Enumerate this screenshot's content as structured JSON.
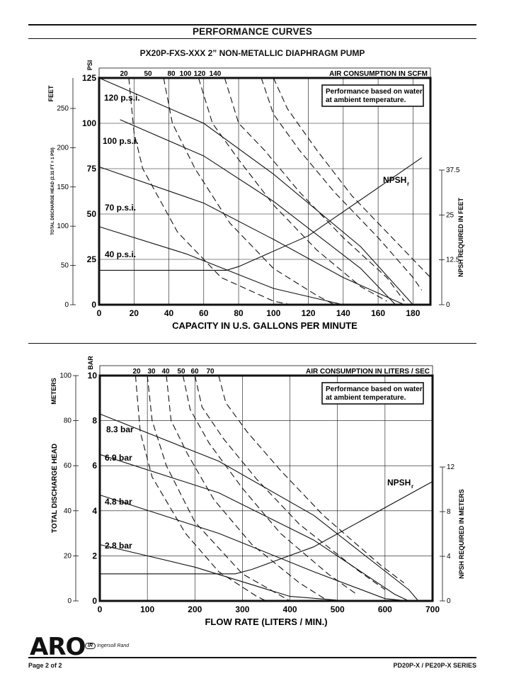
{
  "page": {
    "heading": "PERFORMANCE CURVES",
    "footer_left": "Page  2 of 2",
    "footer_right": "PD20P-X / PE20P-X SERIES",
    "logo_text": "ARO",
    "partner_badge": "IR",
    "partner_text": "Ingersoll Rand",
    "colors": {
      "ink": "#111111",
      "background": "#ffffff"
    }
  },
  "chart_data": [
    {
      "type": "line",
      "title": "PX20P-FXS-XXX   2” NON-METALLIC DIAPHRAGM PUMP",
      "xlabel": "CAPACITY IN U.S. GALLONS PER MINUTE",
      "xlim": [
        0,
        190
      ],
      "x_ticks": [
        "0",
        "20",
        "40",
        "60",
        "80",
        "100",
        "120",
        "140",
        "160",
        "180"
      ],
      "ylim": [
        0,
        125
      ],
      "left_axis": {
        "label": "FEET",
        "label_long": "TOTAL DISCHARGE HEAD (2.31 FT = 1 PSI)",
        "ticks": [
          "250",
          "200",
          "150",
          "100",
          "50",
          "0"
        ]
      },
      "pressure_axis": {
        "label": "PSI",
        "ticks": [
          "125",
          "100",
          "75",
          "50",
          "25",
          "0"
        ]
      },
      "right_axis": {
        "label": "NPSH REQUIRED IN FEET",
        "ticks": [
          "37.5",
          "25",
          "12.5",
          "0"
        ]
      },
      "top_axis": {
        "label": "AIR CONSUMPTION IN SCFM",
        "ticks": [
          "20",
          "50",
          "80",
          "100",
          "120",
          "140"
        ]
      },
      "note_lines": [
        "Performance based on water",
        "at ambient temperature."
      ],
      "npsh_label": "NPSH",
      "npsh_sub": "r",
      "grid": true,
      "series": [
        {
          "name": "120 p.s.i.",
          "style": "solid",
          "points": [
            [
              0,
              130
            ],
            [
              60,
              100
            ],
            [
              100,
              72
            ],
            [
              150,
              32
            ],
            [
              180,
              0
            ]
          ]
        },
        {
          "name": "100 p.s.i.",
          "style": "solid",
          "points": [
            [
              12,
              102
            ],
            [
              60,
              82
            ],
            [
              100,
              57
            ],
            [
              150,
              20
            ],
            [
              170,
              0
            ]
          ]
        },
        {
          "name": "70 p.s.i.",
          "style": "solid",
          "points": [
            [
              0,
              76
            ],
            [
              60,
              56
            ],
            [
              100,
              36
            ],
            [
              140,
              15
            ],
            [
              175,
              0
            ]
          ]
        },
        {
          "name": "40 p.s.i.",
          "style": "solid",
          "points": [
            [
              0,
              43
            ],
            [
              50,
              28
            ],
            [
              100,
              9
            ],
            [
              140,
              0
            ]
          ]
        },
        {
          "name": "NPSH",
          "style": "solid",
          "points": [
            [
              0,
              19
            ],
            [
              73,
              19
            ],
            [
              80,
              21
            ],
            [
              120,
              38
            ],
            [
              185,
              81
            ]
          ]
        },
        {
          "name": "20",
          "style": "dash",
          "points": [
            [
              17,
              125
            ],
            [
              20,
              95
            ],
            [
              25,
              75
            ],
            [
              45,
              40
            ],
            [
              70,
              15
            ],
            [
              100,
              2
            ],
            [
              110,
              0
            ]
          ]
        },
        {
          "name": "50",
          "style": "dash",
          "points": [
            [
              37,
              125
            ],
            [
              42,
              100
            ],
            [
              55,
              75
            ],
            [
              75,
              45
            ],
            [
              100,
              20
            ],
            [
              125,
              5
            ],
            [
              135,
              0
            ]
          ]
        },
        {
          "name": "80",
          "style": "dash",
          "points": [
            [
              57,
              125
            ],
            [
              65,
              100
            ],
            [
              80,
              80
            ],
            [
              100,
              55
            ],
            [
              125,
              30
            ],
            [
              150,
              10
            ],
            [
              165,
              2
            ]
          ]
        },
        {
          "name": "100",
          "style": "dash",
          "points": [
            [
              72,
              125
            ],
            [
              80,
              100
            ],
            [
              95,
              85
            ],
            [
              115,
              62
            ],
            [
              140,
              37
            ],
            [
              165,
              15
            ],
            [
              175,
              2
            ]
          ]
        },
        {
          "name": "120",
          "style": "dash",
          "points": [
            [
              93,
              125
            ],
            [
              100,
              105
            ],
            [
              115,
              85
            ],
            [
              135,
              62
            ],
            [
              160,
              37
            ],
            [
              180,
              15
            ],
            [
              185,
              8
            ]
          ]
        },
        {
          "name": "140",
          "style": "dash",
          "points": [
            [
              100,
              125
            ],
            [
              108,
              108
            ],
            [
              125,
              85
            ],
            [
              145,
              60
            ],
            [
              165,
              40
            ],
            [
              185,
              20
            ],
            [
              190,
              15
            ]
          ]
        }
      ]
    },
    {
      "type": "line",
      "title": "",
      "xlabel": "FLOW RATE (LITERS / MIN.)",
      "xlim": [
        0,
        700
      ],
      "x_ticks": [
        "0",
        "100",
        "200",
        "300",
        "400",
        "500",
        "600",
        "700"
      ],
      "ylim": [
        0,
        10
      ],
      "left_axis": {
        "label": "METERS",
        "label_long": "TOTAL DISCHARGE HEAD",
        "ticks": [
          "100",
          "80",
          "60",
          "40",
          "20",
          "0"
        ]
      },
      "pressure_axis": {
        "label": "BAR",
        "ticks": [
          "10",
          "8",
          "6",
          "4",
          "2",
          "0"
        ]
      },
      "right_axis": {
        "label": "NPSH REQUIRED IN METERS",
        "ticks": [
          "12",
          "8",
          "4",
          "0"
        ]
      },
      "top_axis": {
        "label": "AIR CONSUMPTION IN LITERS / SEC",
        "ticks": [
          "20",
          "30",
          "40",
          "50",
          "60",
          "70"
        ]
      },
      "note_lines": [
        "Performance based on water",
        "at ambient temperature."
      ],
      "npsh_label": "NPSH",
      "npsh_sub": "r",
      "grid": true,
      "series": [
        {
          "name": "8.3 bar",
          "style": "solid",
          "points": [
            [
              0,
              8.3
            ],
            [
              250,
              6.2
            ],
            [
              450,
              3.8
            ],
            [
              650,
              0.5
            ],
            [
              670,
              0
            ]
          ]
        },
        {
          "name": "6.9 bar",
          "style": "solid",
          "points": [
            [
              0,
              6.5
            ],
            [
              250,
              4.8
            ],
            [
              450,
              2.7
            ],
            [
              620,
              0.3
            ],
            [
              650,
              0
            ]
          ]
        },
        {
          "name": "4.8 bar",
          "style": "solid",
          "points": [
            [
              0,
              4.7
            ],
            [
              250,
              3.0
            ],
            [
              450,
              1.3
            ],
            [
              600,
              0.1
            ],
            [
              650,
              0
            ]
          ]
        },
        {
          "name": "2.8 bar",
          "style": "solid",
          "points": [
            [
              0,
              2.5
            ],
            [
              200,
              1.5
            ],
            [
              400,
              0.2
            ],
            [
              520,
              0
            ]
          ]
        },
        {
          "name": "NPSH",
          "style": "solid",
          "points": [
            [
              0,
              1.2
            ],
            [
              285,
              1.2
            ],
            [
              320,
              1.4
            ],
            [
              450,
              2.4
            ],
            [
              700,
              5.3
            ]
          ]
        },
        {
          "name": "20",
          "style": "dash",
          "points": [
            [
              75,
              10
            ],
            [
              85,
              7.5
            ],
            [
              110,
              5.5
            ],
            [
              180,
              3.0
            ],
            [
              250,
              1.3
            ],
            [
              330,
              0.2
            ],
            [
              350,
              0
            ]
          ]
        },
        {
          "name": "30",
          "style": "dash",
          "points": [
            [
              100,
              10
            ],
            [
              110,
              8
            ],
            [
              140,
              6
            ],
            [
              200,
              3.5
            ],
            [
              300,
              1.2
            ],
            [
              400,
              0
            ]
          ]
        },
        {
          "name": "40",
          "style": "dash",
          "points": [
            [
              140,
              10
            ],
            [
              150,
              8
            ],
            [
              185,
              6.5
            ],
            [
              240,
              4.5
            ],
            [
              320,
              2.5
            ],
            [
              420,
              0.8
            ],
            [
              480,
              0
            ]
          ]
        },
        {
          "name": "50",
          "style": "dash",
          "points": [
            [
              175,
              10
            ],
            [
              190,
              8.5
            ],
            [
              230,
              7
            ],
            [
              300,
              5
            ],
            [
              380,
              3
            ],
            [
              480,
              1.2
            ],
            [
              540,
              0.3
            ]
          ]
        },
        {
          "name": "60",
          "style": "dash",
          "points": [
            [
              200,
              10
            ],
            [
              215,
              8.6
            ],
            [
              260,
              7.2
            ],
            [
              330,
              5.4
            ],
            [
              420,
              3.4
            ],
            [
              540,
              1.4
            ],
            [
              600,
              0.5
            ]
          ]
        },
        {
          "name": "70",
          "style": "dash",
          "points": [
            [
              250,
              10
            ],
            [
              265,
              8.8
            ],
            [
              310,
              7.5
            ],
            [
              380,
              5.8
            ],
            [
              470,
              3.8
            ],
            [
              590,
              1.6
            ],
            [
              640,
              0.8
            ]
          ]
        }
      ]
    }
  ]
}
